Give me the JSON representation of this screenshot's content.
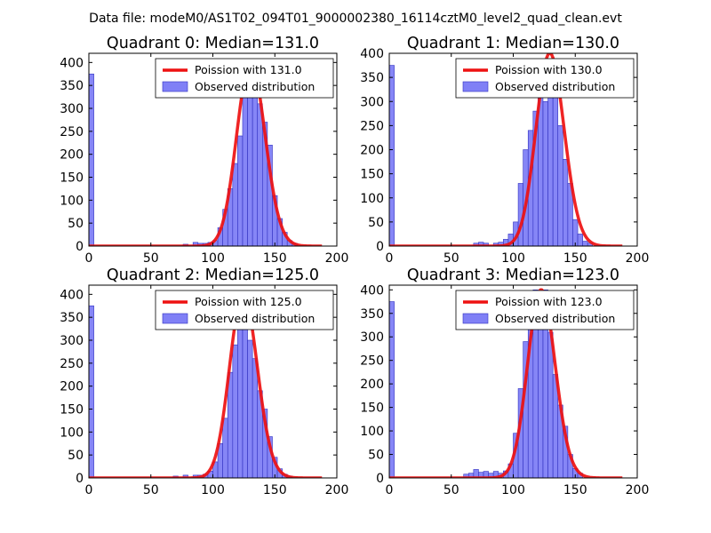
{
  "suptitle": "Data file: modeM0/AS1T02_094T01_9000002380_16114cztM0_level2_quad_clean.evt",
  "colors": {
    "bar_fill": "#8080f6",
    "bar_edge": "#3030c0",
    "curve": "#ee1111",
    "axis": "#000000"
  },
  "chart_data": [
    {
      "type": "bar",
      "title": "Quadrant 0: Median=131.0",
      "median": 131.0,
      "xlim": [
        0,
        200
      ],
      "ylim": [
        0,
        420
      ],
      "xticks": [
        0,
        50,
        100,
        150,
        200
      ],
      "yticks": [
        0,
        50,
        100,
        150,
        200,
        250,
        300,
        350,
        400
      ],
      "legend": [
        "Poission with 131.0",
        "Observed distribution"
      ],
      "legend_loc": "upper right",
      "bins": [
        [
          0,
          4,
          375
        ],
        [
          76,
          80,
          4
        ],
        [
          84,
          88,
          8
        ],
        [
          88,
          92,
          6
        ],
        [
          92,
          96,
          6
        ],
        [
          96,
          100,
          8
        ],
        [
          100,
          104,
          12
        ],
        [
          104,
          108,
          40
        ],
        [
          108,
          112,
          80
        ],
        [
          112,
          116,
          125
        ],
        [
          116,
          120,
          180
        ],
        [
          120,
          124,
          240
        ],
        [
          124,
          128,
          340
        ],
        [
          128,
          132,
          360
        ],
        [
          132,
          136,
          390
        ],
        [
          136,
          140,
          310
        ],
        [
          140,
          144,
          270
        ],
        [
          144,
          148,
          220
        ],
        [
          148,
          152,
          110
        ],
        [
          152,
          156,
          60
        ],
        [
          156,
          160,
          30
        ],
        [
          160,
          164,
          12
        ],
        [
          164,
          168,
          6
        ]
      ]
    },
    {
      "type": "bar",
      "title": "Quadrant 1: Median=130.0",
      "median": 130.0,
      "xlim": [
        0,
        200
      ],
      "ylim": [
        0,
        400
      ],
      "xticks": [
        0,
        50,
        100,
        150,
        200
      ],
      "yticks": [
        0,
        50,
        100,
        150,
        200,
        250,
        300,
        350,
        400
      ],
      "legend": [
        "Poission with 130.0",
        "Observed distribution"
      ],
      "legend_loc": "upper right",
      "bins": [
        [
          0,
          4,
          375
        ],
        [
          68,
          72,
          6
        ],
        [
          72,
          76,
          8
        ],
        [
          76,
          80,
          6
        ],
        [
          84,
          88,
          6
        ],
        [
          88,
          92,
          8
        ],
        [
          92,
          96,
          14
        ],
        [
          96,
          100,
          25
        ],
        [
          100,
          104,
          50
        ],
        [
          104,
          108,
          130
        ],
        [
          108,
          112,
          200
        ],
        [
          112,
          116,
          240
        ],
        [
          116,
          120,
          280
        ],
        [
          120,
          124,
          370
        ],
        [
          124,
          128,
          300
        ],
        [
          128,
          132,
          350
        ],
        [
          132,
          136,
          345
        ],
        [
          136,
          140,
          250
        ],
        [
          140,
          144,
          180
        ],
        [
          144,
          148,
          130
        ],
        [
          148,
          152,
          55
        ],
        [
          152,
          156,
          25
        ],
        [
          156,
          160,
          10
        ],
        [
          160,
          164,
          6
        ]
      ]
    },
    {
      "type": "bar",
      "title": "Quadrant 2: Median=125.0",
      "median": 125.0,
      "xlim": [
        0,
        200
      ],
      "ylim": [
        0,
        420
      ],
      "xticks": [
        0,
        50,
        100,
        150,
        200
      ],
      "yticks": [
        0,
        50,
        100,
        150,
        200,
        250,
        300,
        350,
        400
      ],
      "legend": [
        "Poission with 125.0",
        "Observed distribution"
      ],
      "legend_loc": "upper right",
      "bins": [
        [
          0,
          4,
          375
        ],
        [
          68,
          72,
          4
        ],
        [
          76,
          80,
          6
        ],
        [
          84,
          88,
          6
        ],
        [
          88,
          92,
          6
        ],
        [
          92,
          96,
          8
        ],
        [
          96,
          100,
          15
        ],
        [
          100,
          104,
          35
        ],
        [
          104,
          108,
          75
        ],
        [
          108,
          112,
          130
        ],
        [
          112,
          116,
          230
        ],
        [
          116,
          120,
          290
        ],
        [
          120,
          124,
          390
        ],
        [
          124,
          128,
          390
        ],
        [
          128,
          132,
          300
        ],
        [
          132,
          136,
          260
        ],
        [
          136,
          140,
          190
        ],
        [
          140,
          144,
          150
        ],
        [
          144,
          148,
          90
        ],
        [
          148,
          152,
          45
        ],
        [
          152,
          156,
          20
        ],
        [
          156,
          160,
          8
        ],
        [
          160,
          164,
          4
        ]
      ]
    },
    {
      "type": "bar",
      "title": "Quadrant 3: Median=123.0",
      "median": 123.0,
      "xlim": [
        0,
        200
      ],
      "ylim": [
        0,
        410
      ],
      "xticks": [
        0,
        50,
        100,
        150,
        200
      ],
      "yticks": [
        0,
        50,
        100,
        150,
        200,
        250,
        300,
        350,
        400
      ],
      "legend": [
        "Poission with 123.0",
        "Observed distribution"
      ],
      "legend_loc": "upper right",
      "bins": [
        [
          0,
          4,
          375
        ],
        [
          60,
          64,
          8
        ],
        [
          64,
          68,
          10
        ],
        [
          68,
          72,
          18
        ],
        [
          72,
          76,
          12
        ],
        [
          76,
          80,
          14
        ],
        [
          80,
          84,
          10
        ],
        [
          84,
          88,
          14
        ],
        [
          88,
          92,
          10
        ],
        [
          92,
          96,
          15
        ],
        [
          96,
          100,
          30
        ],
        [
          100,
          104,
          95
        ],
        [
          104,
          108,
          190
        ],
        [
          108,
          112,
          290
        ],
        [
          112,
          116,
          350
        ],
        [
          116,
          120,
          400
        ],
        [
          120,
          124,
          330
        ],
        [
          124,
          128,
          400
        ],
        [
          128,
          132,
          310
        ],
        [
          132,
          136,
          220
        ],
        [
          136,
          140,
          155
        ],
        [
          140,
          144,
          110
        ],
        [
          144,
          148,
          50
        ],
        [
          148,
          152,
          20
        ],
        [
          152,
          156,
          10
        ]
      ]
    }
  ]
}
